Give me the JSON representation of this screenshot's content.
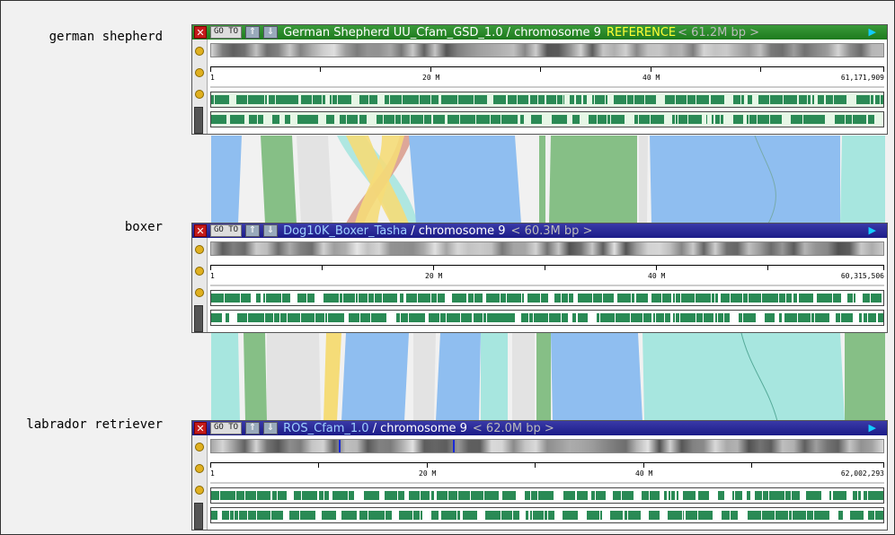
{
  "genomes": [
    {
      "label": "german shepherd",
      "name": "German Shepherd UU_Cfam_GSD_1.0",
      "chrom": "/ chromosome 9",
      "reference": "REFERENCE",
      "length": "<  61.2M bp  >",
      "ruler": {
        "start": "1",
        "t20": "20 M",
        "t40": "40 M",
        "end": "61,171,909"
      },
      "style": "green"
    },
    {
      "label": "boxer",
      "name": "Dog10K_Boxer_Tasha",
      "chrom": "/ chromosome 9",
      "reference": "",
      "length": "<  60.3M bp  >",
      "ruler": {
        "start": "1",
        "t20": "20 M",
        "t40": "40 M",
        "end": "60,315,506"
      },
      "style": "blue"
    },
    {
      "label": "labrador retriever",
      "name": "ROS_Cfam_1.0",
      "chrom": "/ chromosome 9",
      "reference": "",
      "length": "<  62.0M bp  >",
      "ruler": {
        "start": "1",
        "t20": "20 M",
        "t40": "40 M",
        "end": "62,002,293"
      },
      "style": "blue"
    }
  ],
  "controls": {
    "close": "✕",
    "goto": "GO TO",
    "up": "⇑",
    "down": "⇓",
    "play": "▶"
  },
  "colors": {
    "ref_bar": "#1d7a1d",
    "track_bar": "#3a3aa8",
    "feature": "#2a8a55",
    "syn_blue": "#8fbef0",
    "syn_green": "#86bf86",
    "syn_teal": "#a7e6df",
    "syn_grey": "#e3e3e3",
    "syn_yellow": "#f5dc78",
    "syn_red": "#d99a8a"
  }
}
